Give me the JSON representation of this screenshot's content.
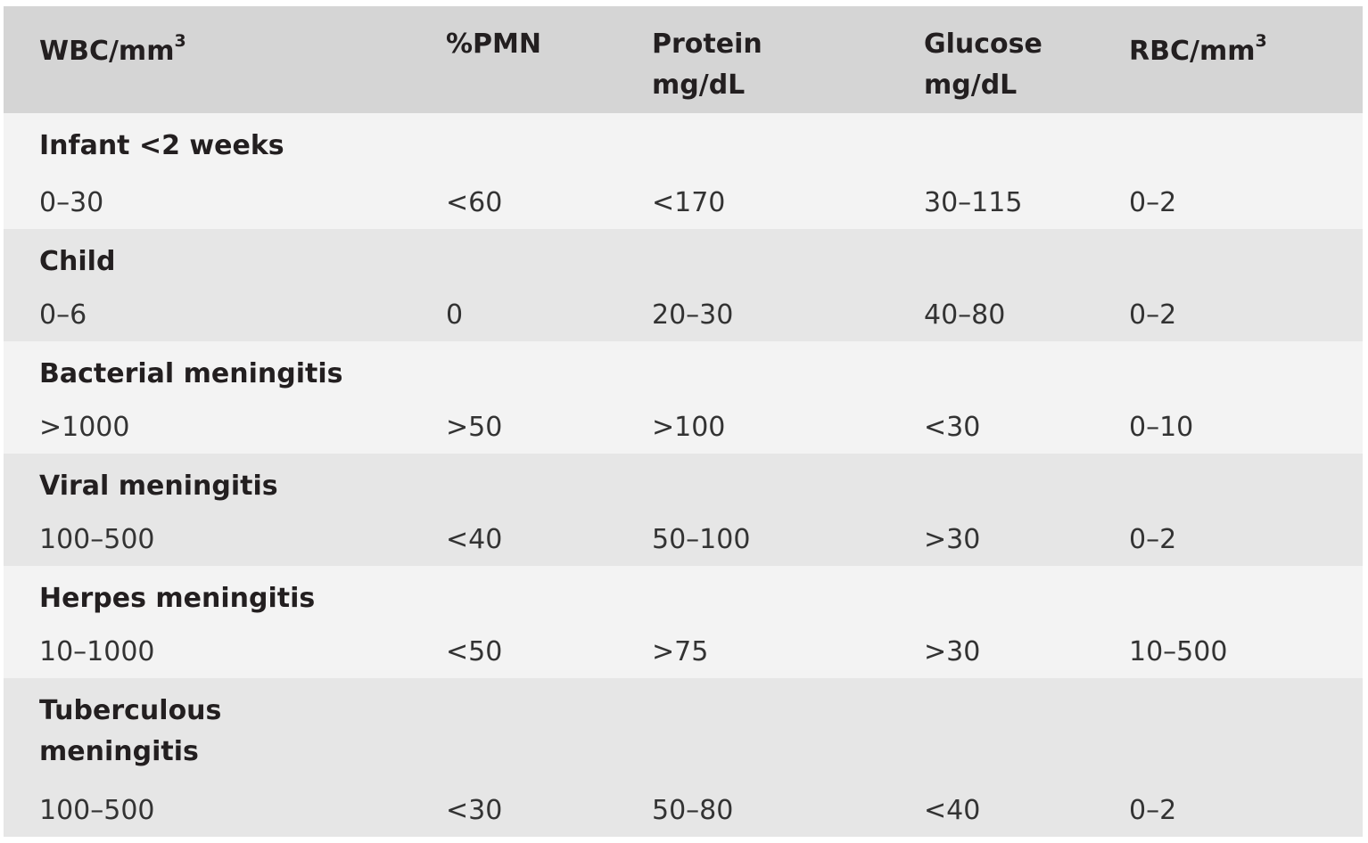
{
  "header": {
    "wbc": "WBC/mm",
    "wbc_sup": "3",
    "pmn": "%PMN",
    "protein": "Protein\nmg/dL",
    "glucose": "Glucose\nmg/dL",
    "rbc": "RBC/mm",
    "rbc_sup": "3"
  },
  "rows": [
    {
      "label": "Infant <2 weeks",
      "wbc": "0–30",
      "pmn": "<60",
      "protein": "<170",
      "glucose": "30–115",
      "rbc": "0–2"
    },
    {
      "label": "Child",
      "wbc": "0–6",
      "pmn": "0",
      "protein": "20–30",
      "glucose": "40–80",
      "rbc": "0–2"
    },
    {
      "label": "Bacterial meningitis",
      "wbc": ">1000",
      "pmn": ">50",
      "protein": ">100",
      "glucose": "<30",
      "rbc": "0–10"
    },
    {
      "label": "Viral meningitis",
      "wbc": "100–500",
      "pmn": "<40",
      "protein": "50–100",
      "glucose": ">30",
      "rbc": "0–2"
    },
    {
      "label": "Herpes meningitis",
      "wbc": "10–1000",
      "pmn": "<50",
      "protein": ">75",
      "glucose": ">30",
      "rbc": "10–500"
    },
    {
      "label": "Tuberculous\nmeningitis",
      "wbc": "100–500",
      "pmn": "<30",
      "protein": "50–80",
      "glucose": "<40",
      "rbc": "0–2"
    }
  ]
}
